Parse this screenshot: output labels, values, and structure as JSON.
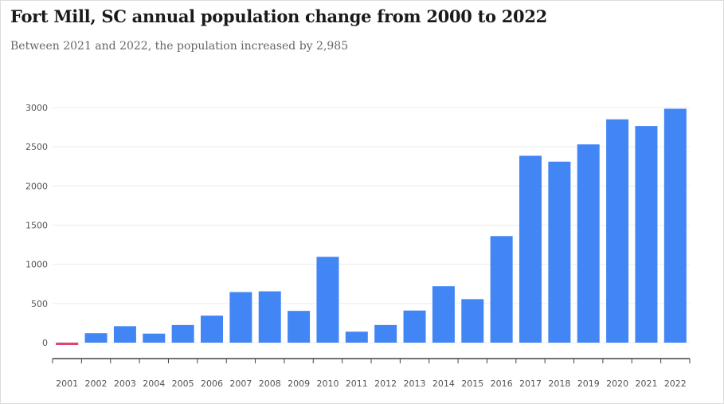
{
  "colors": {
    "positive": "#4285f4",
    "negative": "#e0446c",
    "grid": "#ececec",
    "axis": "#444444"
  },
  "chart_data": {
    "type": "bar",
    "title": "Fort Mill, SC annual population change from 2000 to 2022",
    "subtitle": "Between 2021 and 2022, the population increased by 2,985",
    "xlabel": "",
    "ylabel": "",
    "ylim": [
      0,
      3000
    ],
    "yticks": [
      0,
      500,
      1000,
      1500,
      2000,
      2500,
      3000
    ],
    "grid": true,
    "categories": [
      "2001",
      "2002",
      "2003",
      "2004",
      "2005",
      "2006",
      "2007",
      "2008",
      "2009",
      "2010",
      "2011",
      "2012",
      "2013",
      "2014",
      "2015",
      "2016",
      "2017",
      "2018",
      "2019",
      "2020",
      "2021",
      "2022"
    ],
    "values": [
      -30,
      120,
      210,
      115,
      225,
      345,
      645,
      655,
      405,
      1095,
      140,
      225,
      410,
      720,
      555,
      1360,
      2385,
      2310,
      2530,
      2850,
      2765,
      2985
    ]
  }
}
